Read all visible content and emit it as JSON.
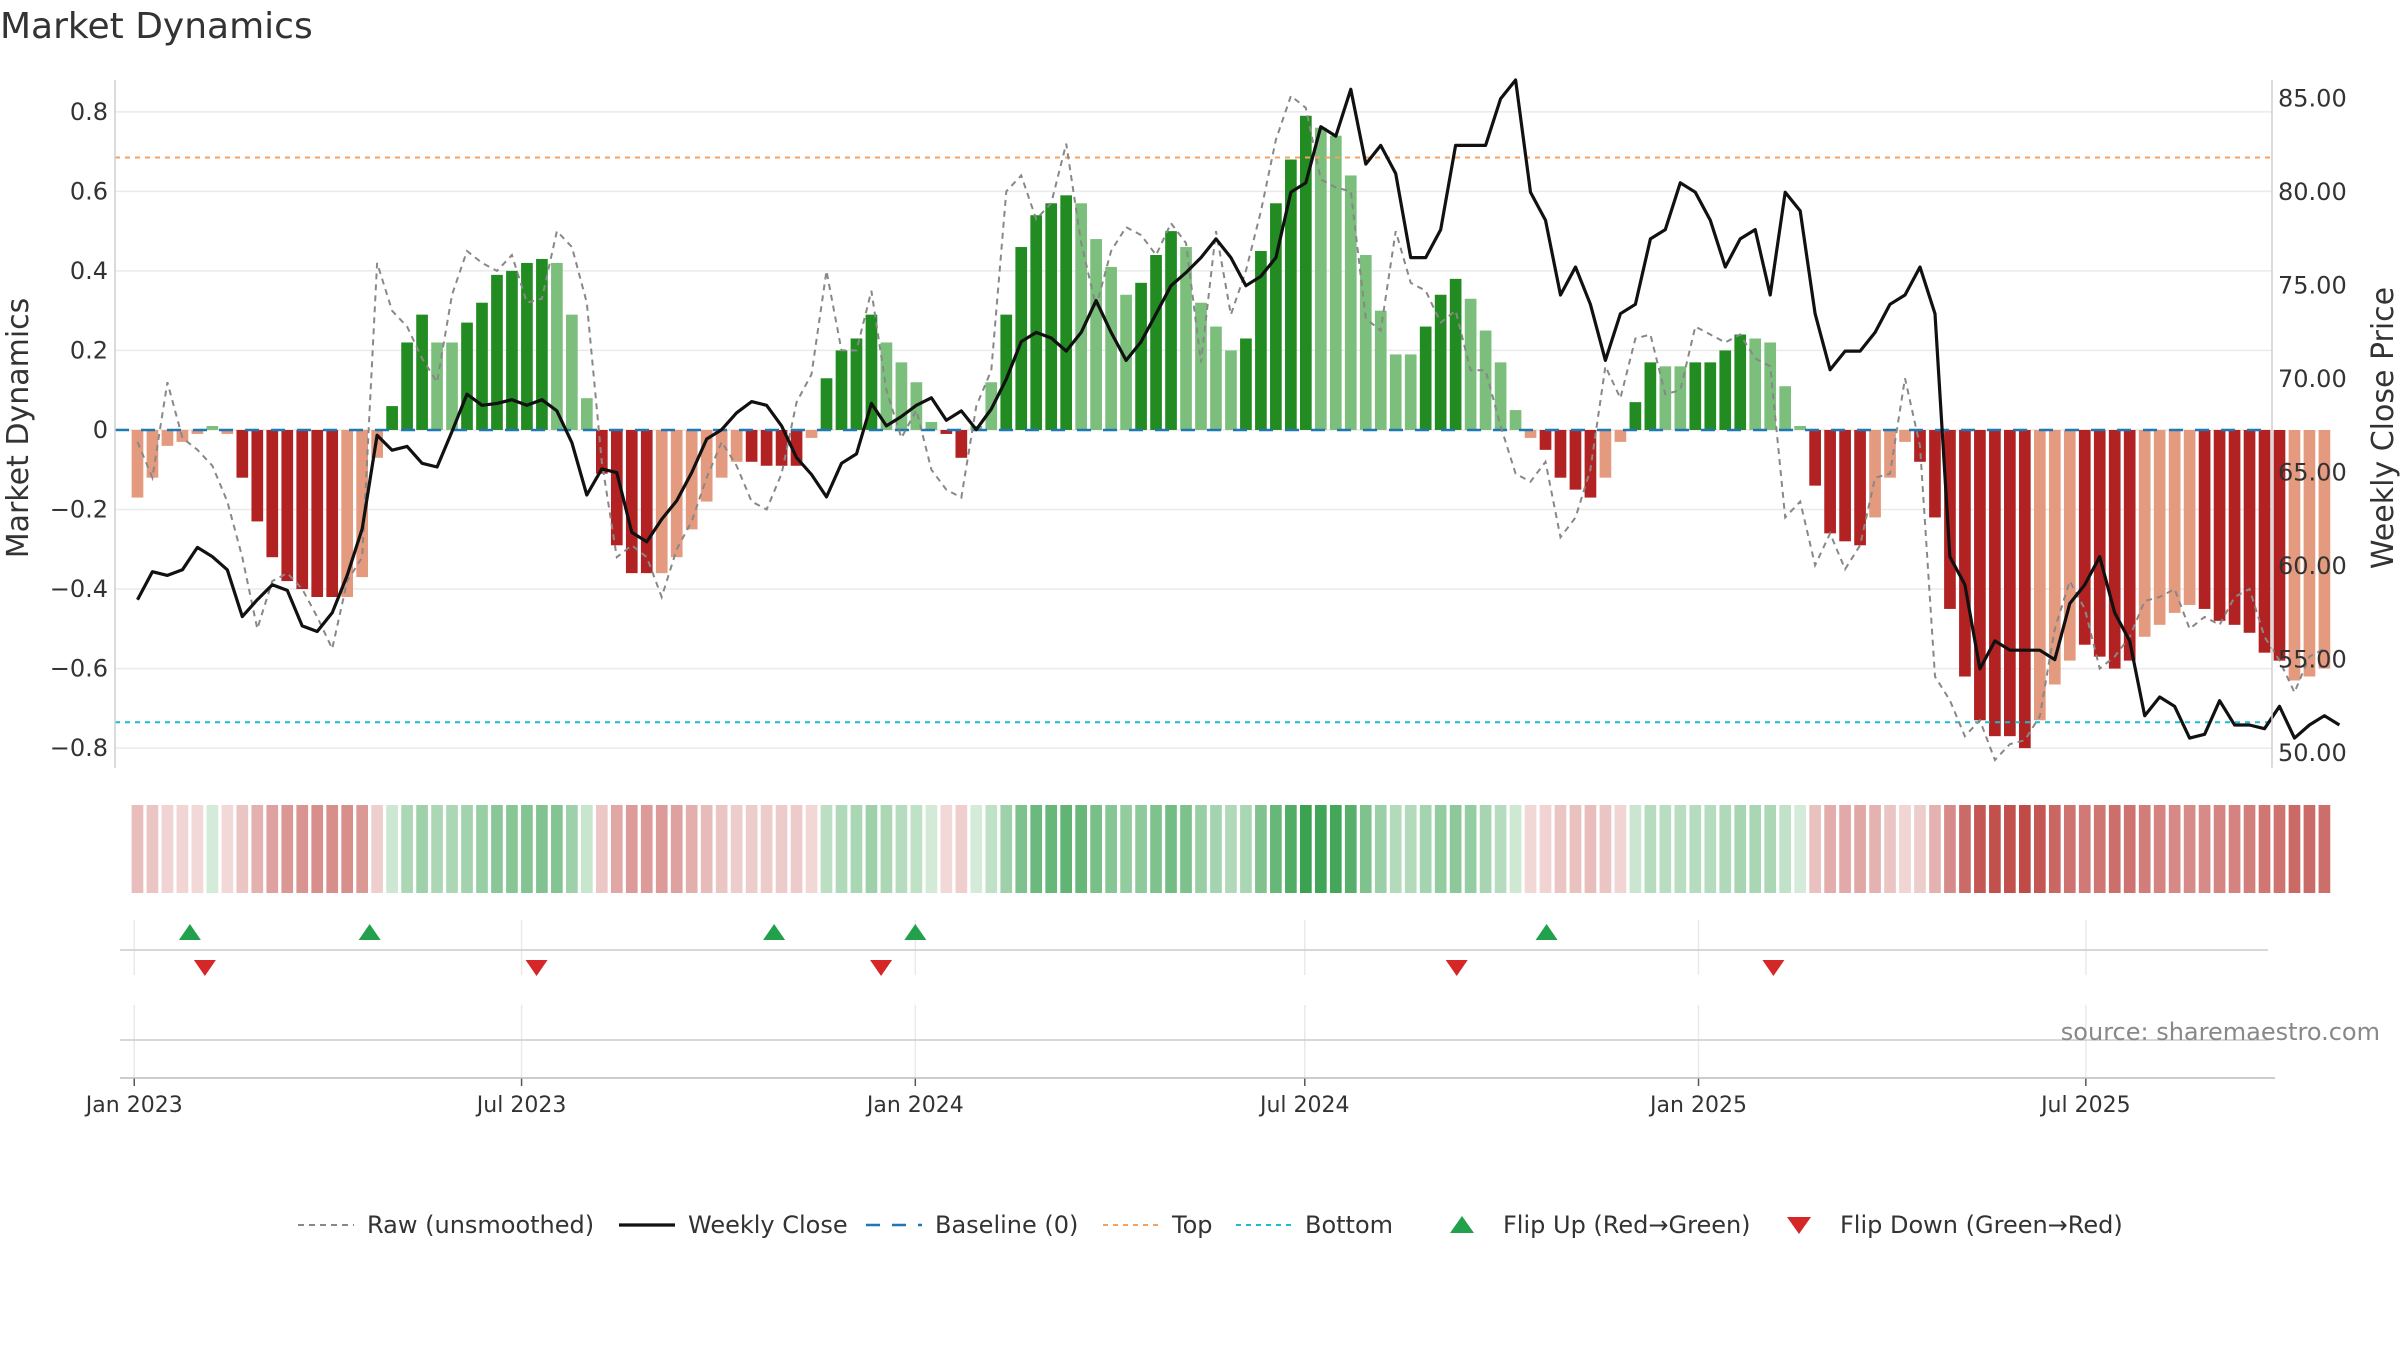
{
  "chart_data": {
    "type": "bar",
    "title": "Market Dynamics",
    "ylabel_left": "Market Dynamics",
    "ylabel_right": "Weekly Close Price",
    "left_ylim": [
      -0.85,
      0.88
    ],
    "right_ylim": [
      49.2,
      86.0
    ],
    "left_ticks": [
      0.8,
      0.6,
      0.4,
      0.2,
      0,
      -0.2,
      -0.4,
      -0.6,
      -0.8
    ],
    "left_tick_labels": [
      "0.8",
      "0.6",
      "0.4",
      "0.2",
      "0",
      "−0.2",
      "−0.4",
      "−0.6",
      "−0.8"
    ],
    "right_ticks": [
      85,
      80,
      75,
      70,
      65,
      60,
      55,
      50
    ],
    "right_tick_labels": [
      "85.00",
      "80.00",
      "75.00",
      "70.00",
      "65.00",
      "60.00",
      "55.00",
      "50.00"
    ],
    "x_start": "2022-12-23",
    "x_end": "2025-09-26",
    "x_ticks": [
      {
        "date": "2023-01-01",
        "label": "Jan 2023"
      },
      {
        "date": "2023-07-01",
        "label": "Jul 2023"
      },
      {
        "date": "2024-01-01",
        "label": "Jan 2024"
      },
      {
        "date": "2024-07-01",
        "label": "Jul 2024"
      },
      {
        "date": "2025-01-01",
        "label": "Jan 2025"
      },
      {
        "date": "2025-07-01",
        "label": "Jul 2025"
      }
    ],
    "top_level": 0.685,
    "bottom_level": -0.735,
    "baseline": 0,
    "first_week": "2022-12-30",
    "bars": [
      -0.17,
      -0.12,
      -0.04,
      -0.03,
      -0.01,
      0.01,
      -0.01,
      -0.12,
      -0.23,
      -0.32,
      -0.38,
      -0.4,
      -0.42,
      -0.42,
      -0.42,
      -0.37,
      -0.07,
      0.06,
      0.22,
      0.29,
      0.22,
      0.22,
      0.27,
      0.32,
      0.39,
      0.4,
      0.42,
      0.43,
      0.42,
      0.29,
      0.08,
      -0.11,
      -0.29,
      -0.36,
      -0.36,
      -0.36,
      -0.32,
      -0.25,
      -0.18,
      -0.12,
      -0.08,
      -0.08,
      -0.09,
      -0.09,
      -0.09,
      -0.02,
      0.13,
      0.2,
      0.23,
      0.29,
      0.22,
      0.17,
      0.12,
      0.02,
      -0.01,
      -0.07,
      0.01,
      0.12,
      0.29,
      0.46,
      0.54,
      0.57,
      0.59,
      0.57,
      0.48,
      0.41,
      0.34,
      0.37,
      0.44,
      0.5,
      0.46,
      0.32,
      0.26,
      0.2,
      0.23,
      0.45,
      0.57,
      0.68,
      0.79,
      0.76,
      0.74,
      0.64,
      0.44,
      0.3,
      0.19,
      0.19,
      0.26,
      0.34,
      0.38,
      0.33,
      0.25,
      0.17,
      0.05,
      -0.02,
      -0.05,
      -0.12,
      -0.15,
      -0.17,
      -0.12,
      -0.03,
      0.07,
      0.17,
      0.16,
      0.16,
      0.17,
      0.17,
      0.2,
      0.24,
      0.23,
      0.22,
      0.11,
      0.01,
      -0.14,
      -0.26,
      -0.28,
      -0.29,
      -0.22,
      -0.12,
      -0.03,
      -0.08,
      -0.22,
      -0.45,
      -0.62,
      -0.73,
      -0.77,
      -0.77,
      -0.8,
      -0.73,
      -0.64,
      -0.58,
      -0.54,
      -0.57,
      -0.6,
      -0.58,
      -0.52,
      -0.49,
      -0.46,
      -0.44,
      -0.45,
      -0.48,
      -0.49,
      -0.51,
      -0.56,
      -0.58,
      -0.63,
      -0.62,
      -0.6
    ],
    "bar_shades": [
      "light",
      "light",
      "light",
      "light",
      "light",
      "light",
      "light",
      "dark",
      "dark",
      "dark",
      "dark",
      "dark",
      "dark",
      "dark",
      "light",
      "light",
      "light",
      "dark",
      "dark",
      "dark",
      "light",
      "light",
      "dark",
      "dark",
      "dark",
      "dark",
      "dark",
      "dark",
      "light",
      "light",
      "light",
      "dark",
      "dark",
      "dark",
      "dark",
      "light",
      "light",
      "light",
      "light",
      "light",
      "light",
      "dark",
      "dark",
      "dark",
      "dark",
      "light",
      "dark",
      "dark",
      "dark",
      "dark",
      "light",
      "light",
      "light",
      "light",
      "dark",
      "dark",
      "light",
      "light",
      "dark",
      "dark",
      "dark",
      "dark",
      "dark",
      "light",
      "light",
      "light",
      "light",
      "dark",
      "dark",
      "dark",
      "light",
      "light",
      "light",
      "light",
      "dark",
      "dark",
      "dark",
      "dark",
      "dark",
      "light",
      "light",
      "light",
      "light",
      "light",
      "light",
      "light",
      "dark",
      "dark",
      "dark",
      "light",
      "light",
      "light",
      "light",
      "light",
      "dark",
      "dark",
      "dark",
      "dark",
      "light",
      "light",
      "dark",
      "dark",
      "light",
      "light",
      "dark",
      "dark",
      "dark",
      "dark",
      "light",
      "light",
      "light",
      "light",
      "dark",
      "dark",
      "dark",
      "dark",
      "light",
      "light",
      "light",
      "dark",
      "dark",
      "dark",
      "dark",
      "dark",
      "dark",
      "dark",
      "dark",
      "light",
      "light",
      "light",
      "dark",
      "dark",
      "dark",
      "dark",
      "light",
      "light",
      "light",
      "light",
      "dark",
      "dark",
      "dark",
      "dark",
      "dark",
      "dark",
      "light",
      "light",
      "light"
    ],
    "raw": [
      -0.03,
      -0.12,
      0.12,
      -0.02,
      -0.05,
      -0.09,
      -0.18,
      -0.32,
      -0.5,
      -0.38,
      -0.36,
      -0.4,
      -0.47,
      -0.55,
      -0.38,
      -0.32,
      0.42,
      0.3,
      0.26,
      0.18,
      0.12,
      0.34,
      0.45,
      0.42,
      0.4,
      0.44,
      0.32,
      0.33,
      0.5,
      0.46,
      0.32,
      -0.08,
      -0.32,
      -0.29,
      -0.32,
      -0.42,
      -0.3,
      -0.23,
      -0.12,
      -0.03,
      -0.09,
      -0.18,
      -0.2,
      -0.11,
      0.07,
      0.14,
      0.4,
      0.2,
      0.2,
      0.35,
      0.1,
      -0.02,
      0.05,
      -0.1,
      -0.15,
      -0.17,
      0.06,
      0.15,
      0.6,
      0.64,
      0.53,
      0.57,
      0.72,
      0.47,
      0.31,
      0.45,
      0.51,
      0.49,
      0.44,
      0.52,
      0.47,
      0.17,
      0.5,
      0.29,
      0.4,
      0.55,
      0.73,
      0.84,
      0.81,
      0.63,
      0.61,
      0.6,
      0.28,
      0.25,
      0.5,
      0.37,
      0.35,
      0.27,
      0.3,
      0.15,
      0.15,
      0.01,
      -0.11,
      -0.13,
      -0.08,
      -0.27,
      -0.22,
      -0.1,
      0.16,
      0.08,
      0.23,
      0.24,
      0.09,
      0.1,
      0.26,
      0.24,
      0.22,
      0.24,
      0.18,
      0.16,
      -0.22,
      -0.18,
      -0.34,
      -0.26,
      -0.35,
      -0.29,
      -0.12,
      -0.11,
      0.13,
      -0.04,
      -0.62,
      -0.68,
      -0.77,
      -0.73,
      -0.83,
      -0.79,
      -0.78,
      -0.72,
      -0.5,
      -0.38,
      -0.45,
      -0.6,
      -0.57,
      -0.52,
      -0.43,
      -0.42,
      -0.4,
      -0.5,
      -0.47,
      -0.49,
      -0.42,
      -0.4,
      -0.52,
      -0.58,
      -0.66,
      -0.57,
      -0.55
    ],
    "close": [
      58.2,
      59.7,
      59.5,
      59.8,
      61.0,
      60.5,
      59.8,
      57.3,
      58.2,
      59.0,
      58.7,
      56.8,
      56.5,
      57.5,
      59.5,
      62.0,
      67.0,
      66.2,
      66.4,
      65.5,
      65.3,
      67.2,
      69.2,
      68.6,
      68.7,
      68.9,
      68.6,
      68.9,
      68.3,
      66.6,
      63.8,
      65.2,
      65.0,
      61.8,
      61.3,
      62.5,
      63.5,
      65.0,
      66.8,
      67.3,
      68.2,
      68.8,
      68.6,
      67.5,
      65.8,
      64.9,
      63.7,
      65.5,
      66.0,
      68.7,
      67.5,
      68.0,
      68.6,
      69.0,
      67.8,
      68.3,
      67.3,
      68.4,
      70.0,
      72.0,
      72.5,
      72.2,
      71.5,
      72.5,
      74.2,
      72.5,
      71.0,
      72.0,
      73.5,
      75.0,
      75.7,
      76.5,
      77.5,
      76.5,
      75.0,
      75.5,
      76.5,
      80.0,
      80.5,
      83.5,
      83.0,
      85.5,
      81.5,
      82.5,
      81.0,
      76.5,
      76.5,
      78.0,
      82.5,
      82.5,
      82.5,
      85.0,
      86.0,
      80.0,
      78.5,
      74.5,
      76.0,
      74.0,
      71.0,
      73.5,
      74.0,
      77.5,
      78.0,
      80.5,
      80.0,
      78.5,
      76.0,
      77.5,
      78.0,
      74.5,
      80.0,
      79.0,
      73.5,
      70.5,
      71.5,
      71.5,
      72.5,
      74.0,
      74.5,
      76.0,
      73.5,
      60.5,
      59.0,
      54.5,
      56.0,
      55.5,
      55.5,
      55.5,
      55.0,
      58.0,
      59.0,
      60.5,
      57.5,
      56.0,
      52.0,
      53.0,
      52.5,
      50.8,
      51.0,
      52.8,
      51.5,
      51.5,
      51.3,
      52.5,
      50.8,
      51.5,
      52.0,
      51.5
    ],
    "flip_up_dates": [
      "2023-01-27",
      "2023-04-21",
      "2023-10-27",
      "2024-01-01",
      "2024-10-22"
    ],
    "flip_down_dates": [
      "2023-02-03",
      "2023-07-08",
      "2023-12-16",
      "2024-09-10",
      "2025-02-05"
    ],
    "heat_band": true,
    "colors": {
      "green_dark": "#228B22",
      "green_light": "#7CBF7C",
      "red_dark": "#B22222",
      "red_light": "#E49A7E",
      "raw_line": "#888888",
      "close_line": "#111111",
      "baseline": "#1f77b4",
      "top_line": "#f4a261",
      "bottom_line": "#17becf",
      "flip_up": "#22a04b",
      "flip_down": "#d62728",
      "grid": "#eaeaea"
    },
    "legend_position": "bottom",
    "legend": [
      {
        "key": "raw",
        "label": "Raw (unsmoothed)"
      },
      {
        "key": "close",
        "label": "Weekly Close"
      },
      {
        "key": "baseline",
        "label": "Baseline (0)"
      },
      {
        "key": "top",
        "label": "Top"
      },
      {
        "key": "bottom",
        "label": "Bottom"
      },
      {
        "key": "flipup",
        "label": "Flip Up (Red→Green)"
      },
      {
        "key": "flipdown",
        "label": "Flip Down (Green→Red)"
      }
    ],
    "source": "source: sharemaestro.com"
  }
}
